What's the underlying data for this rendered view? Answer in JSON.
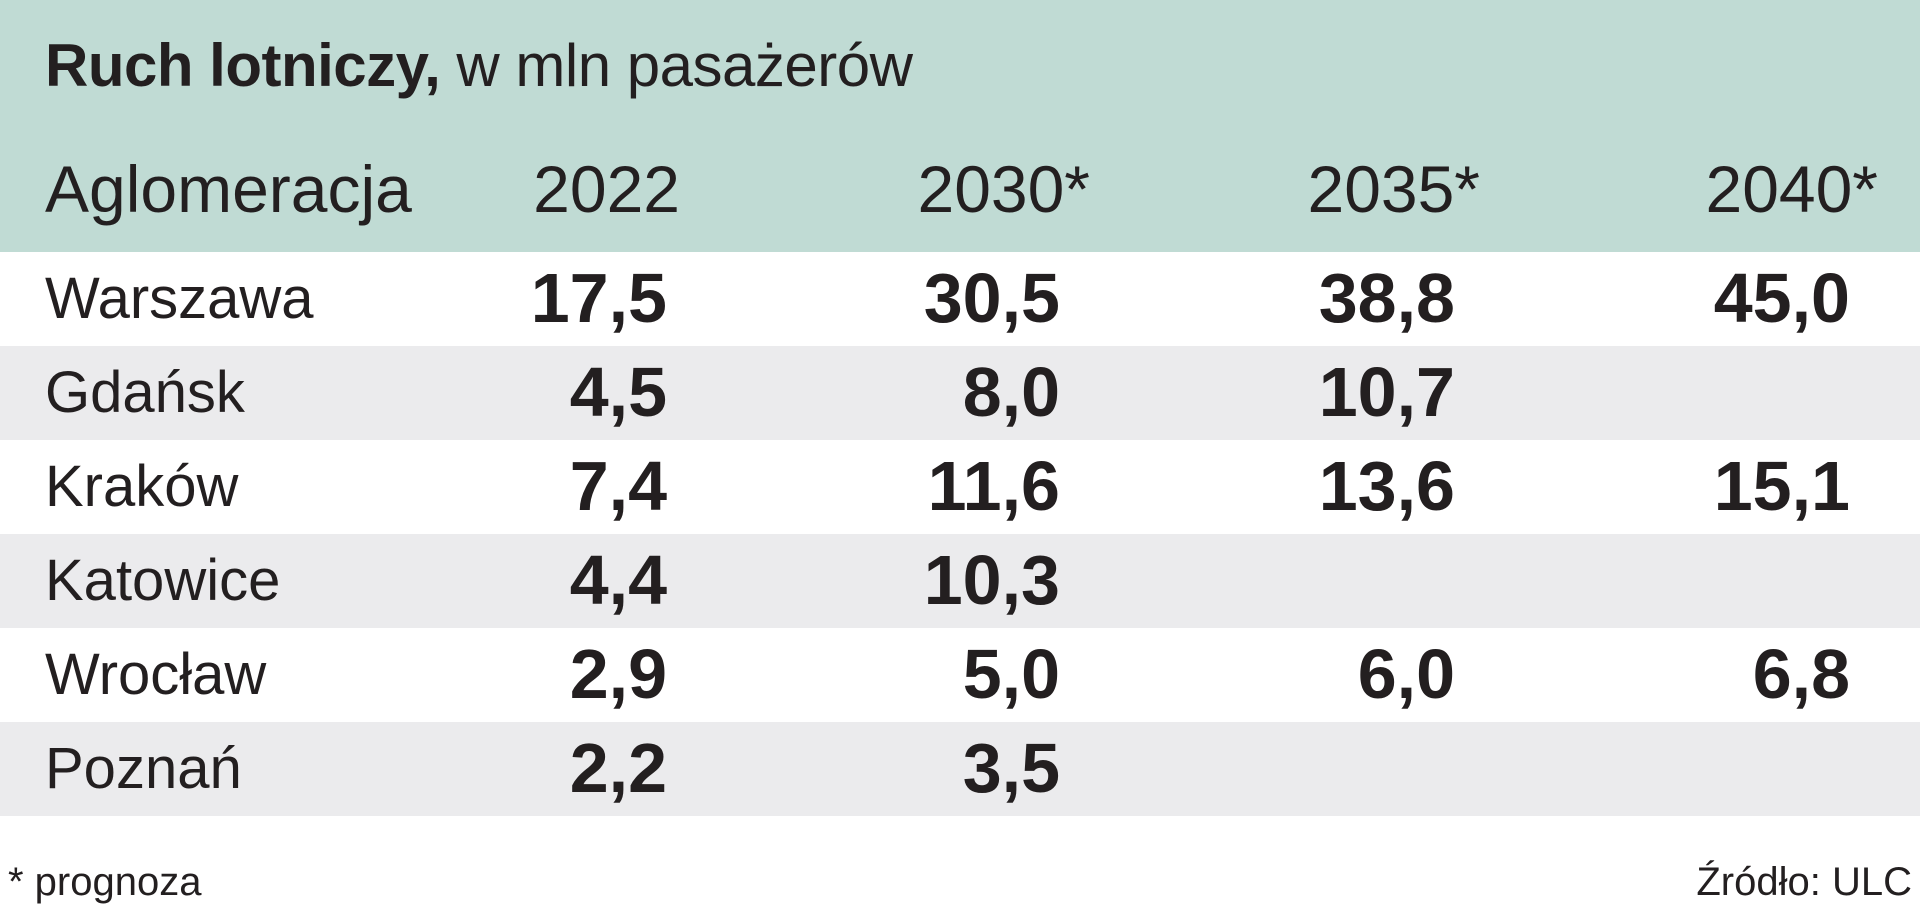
{
  "title_bold": "Ruch lotniczy,",
  "title_rest": " w mln pasażerów",
  "footnote": "* prognoza",
  "source": "Źródło: ULC",
  "colors": {
    "header_bg": "#c0dbd4",
    "row_shade": "#ebebed",
    "text": "#231f20"
  },
  "chart_data": {
    "type": "table",
    "title": "Ruch lotniczy, w mln pasażerów",
    "columns": [
      "Aglomeracja",
      "2022",
      "2030*",
      "2035*",
      "2040*"
    ],
    "rows": [
      {
        "name": "Warszawa",
        "values": [
          "17,5",
          "30,5",
          "38,8",
          "45,0"
        ]
      },
      {
        "name": "Gdańsk",
        "values": [
          "4,5",
          "8,0",
          "10,7",
          ""
        ]
      },
      {
        "name": "Kraków",
        "values": [
          "7,4",
          "11,6",
          "13,6",
          "15,1"
        ]
      },
      {
        "name": "Katowice",
        "values": [
          "4,4",
          "10,3",
          "",
          ""
        ]
      },
      {
        "name": "Wrocław",
        "values": [
          "2,9",
          "5,0",
          "6,0",
          "6,8"
        ]
      },
      {
        "name": "Poznań",
        "values": [
          "2,2",
          "3,5",
          "",
          ""
        ]
      }
    ]
  }
}
